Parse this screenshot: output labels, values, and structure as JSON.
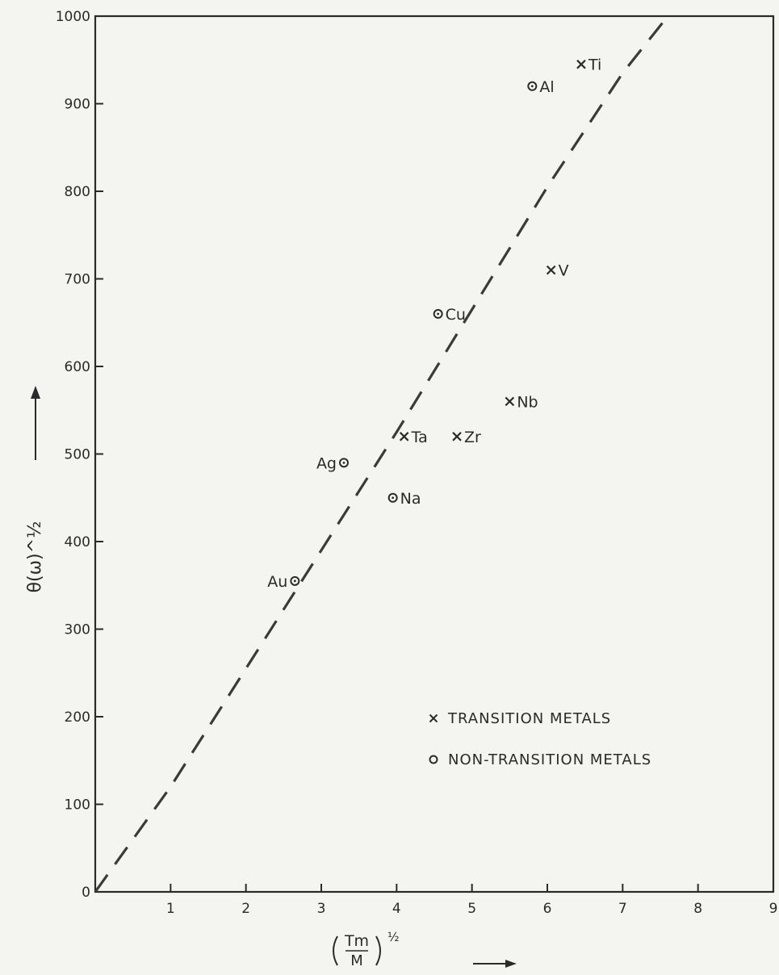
{
  "chart_data": {
    "type": "scatter",
    "xlabel_main": "Tm",
    "xlabel_den": "M",
    "xlabel_exp": "½",
    "ylabel": "θ(ω)^½",
    "xlim": [
      0,
      9
    ],
    "ylim": [
      0,
      1000
    ],
    "x_ticks": [
      1,
      2,
      3,
      4,
      5,
      6,
      7,
      8,
      9
    ],
    "x_tick_labels": [
      "1",
      "2",
      "3",
      "4",
      "5",
      "6",
      "7",
      "8",
      "9"
    ],
    "y_ticks": [
      0,
      100,
      200,
      300,
      400,
      500,
      600,
      700,
      800,
      900,
      1000
    ],
    "y_tick_labels": [
      "0",
      "100",
      "200",
      "300",
      "400",
      "500",
      "600",
      "700",
      "800",
      "900",
      "1000"
    ],
    "grid": false,
    "legend_position": "bottom-right",
    "series": [
      {
        "name": "TRANSITION METALS",
        "marker": "x",
        "points": [
          {
            "label": "Ti",
            "x": 6.45,
            "y": 945
          },
          {
            "label": "V",
            "x": 6.05,
            "y": 710
          },
          {
            "label": "Nb",
            "x": 5.5,
            "y": 560
          },
          {
            "label": "Ta",
            "x": 4.1,
            "y": 520
          },
          {
            "label": "Zr",
            "x": 4.8,
            "y": 520
          }
        ]
      },
      {
        "name": "NON-TRANSITION METALS",
        "marker": "o",
        "points": [
          {
            "label": "Al",
            "x": 5.8,
            "y": 920
          },
          {
            "label": "Cu",
            "x": 4.55,
            "y": 660
          },
          {
            "label": "Ag",
            "x": 3.3,
            "y": 490
          },
          {
            "label": "Na",
            "x": 3.95,
            "y": 450
          },
          {
            "label": "Au",
            "x": 2.65,
            "y": 355
          }
        ]
      }
    ],
    "trend_line": {
      "style": "dashed",
      "x": [
        0,
        1,
        2,
        3,
        4,
        5,
        6,
        7,
        7.6
      ],
      "y": [
        0,
        120,
        255,
        390,
        525,
        665,
        805,
        935,
        1000
      ]
    },
    "colors": {
      "ink": "#2a2a2a",
      "paper": "#f4f4f1"
    }
  }
}
